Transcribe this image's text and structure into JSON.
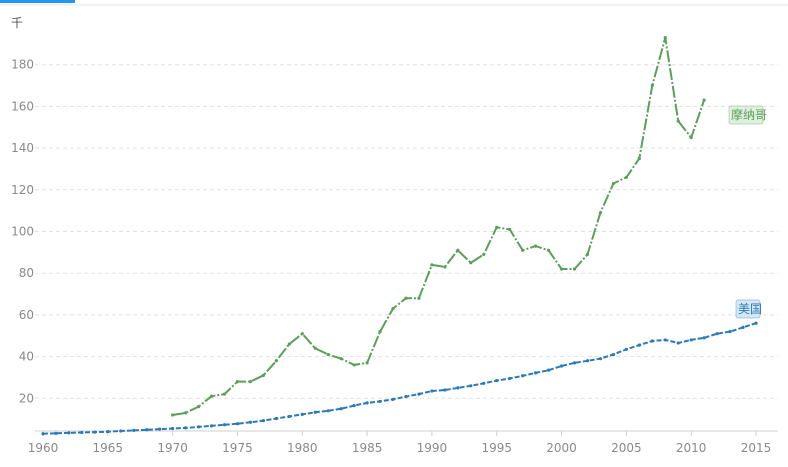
{
  "chart_data": {
    "type": "line",
    "title": "",
    "unit_label": "千",
    "xlabel": "",
    "ylabel": "",
    "xlim": [
      1960,
      2016
    ],
    "ylim": [
      0,
      195
    ],
    "x_ticks": [
      1960,
      1965,
      1970,
      1975,
      1980,
      1985,
      1990,
      1995,
      2000,
      2005,
      2010,
      2015
    ],
    "y_ticks": [
      20,
      40,
      60,
      80,
      100,
      120,
      140,
      160,
      180
    ],
    "grid": "horizontal-dashed",
    "legend": "inline-end-labels",
    "series": [
      {
        "name": "摩纳哥",
        "color": "#5aa05a",
        "tag_bg": "#dff0df",
        "x": [
          1970,
          1971,
          1972,
          1973,
          1974,
          1975,
          1976,
          1977,
          1978,
          1979,
          1980,
          1981,
          1982,
          1983,
          1984,
          1985,
          1986,
          1987,
          1988,
          1989,
          1990,
          1991,
          1992,
          1993,
          1994,
          1995,
          1996,
          1997,
          1998,
          1999,
          2000,
          2001,
          2002,
          2003,
          2004,
          2005,
          2006,
          2007,
          2008,
          2009,
          2010,
          2011
        ],
        "values": [
          12,
          13,
          16,
          21,
          22,
          28,
          28,
          31,
          38,
          46,
          51,
          44,
          41,
          39,
          36,
          37,
          52,
          63,
          68,
          68,
          84,
          83,
          91,
          85,
          89,
          102,
          101,
          91,
          93,
          91,
          82,
          82,
          89,
          109,
          123,
          126,
          135,
          170,
          193,
          153,
          145,
          163
        ]
      },
      {
        "name": "美国",
        "color": "#2a7ab8",
        "tag_bg": "#d6e8f5",
        "x": [
          1960,
          1961,
          1962,
          1963,
          1964,
          1965,
          1966,
          1967,
          1968,
          1969,
          1970,
          1971,
          1972,
          1973,
          1974,
          1975,
          1976,
          1977,
          1978,
          1979,
          1980,
          1981,
          1982,
          1983,
          1984,
          1985,
          1986,
          1987,
          1988,
          1989,
          1990,
          1991,
          1992,
          1993,
          1994,
          1995,
          1996,
          1997,
          1998,
          1999,
          2000,
          2001,
          2002,
          2003,
          2004,
          2005,
          2006,
          2007,
          2008,
          2009,
          2010,
          2011,
          2012,
          2013,
          2014,
          2015
        ],
        "values": [
          3,
          3.2,
          3.4,
          3.6,
          3.8,
          4,
          4.3,
          4.6,
          4.9,
          5.2,
          5.5,
          5.8,
          6.3,
          6.8,
          7.3,
          7.8,
          8.5,
          9.3,
          10.3,
          11.3,
          12.3,
          13.3,
          14,
          15,
          16.5,
          17.8,
          18.5,
          19.5,
          20.8,
          22,
          23.5,
          24,
          25,
          26,
          27.2,
          28.5,
          29.5,
          30.8,
          32.2,
          33.5,
          35.5,
          37,
          38,
          39,
          41,
          43.5,
          45.5,
          47.5,
          48,
          46.5,
          48,
          49,
          51,
          52,
          54,
          56
        ]
      }
    ]
  }
}
